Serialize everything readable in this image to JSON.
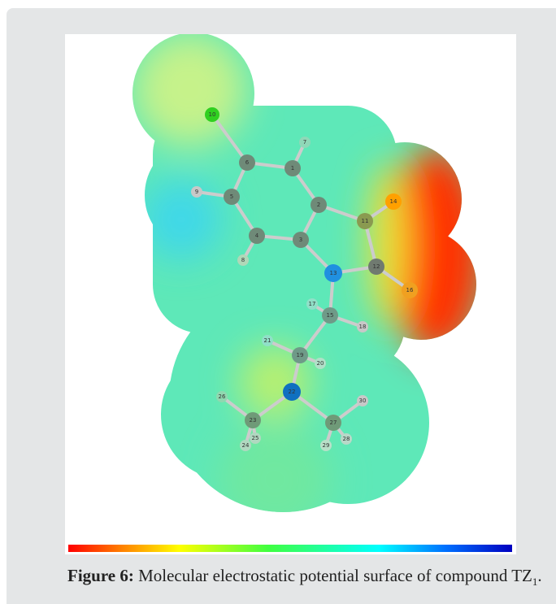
{
  "figure": {
    "atoms": [
      "10",
      "6",
      "1",
      "7",
      "9",
      "5",
      "2",
      "14",
      "11",
      "4",
      "3",
      "8",
      "13",
      "12",
      "16",
      "17",
      "15",
      "18",
      "21",
      "19",
      "20",
      "22",
      "26",
      "23",
      "25",
      "24",
      "27",
      "30",
      "28",
      "29"
    ],
    "caption": {
      "label": "Figure 6:",
      "text": "Molecular electrostatic potential surface of compound TZ",
      "subscript": "1",
      "end": "."
    }
  }
}
